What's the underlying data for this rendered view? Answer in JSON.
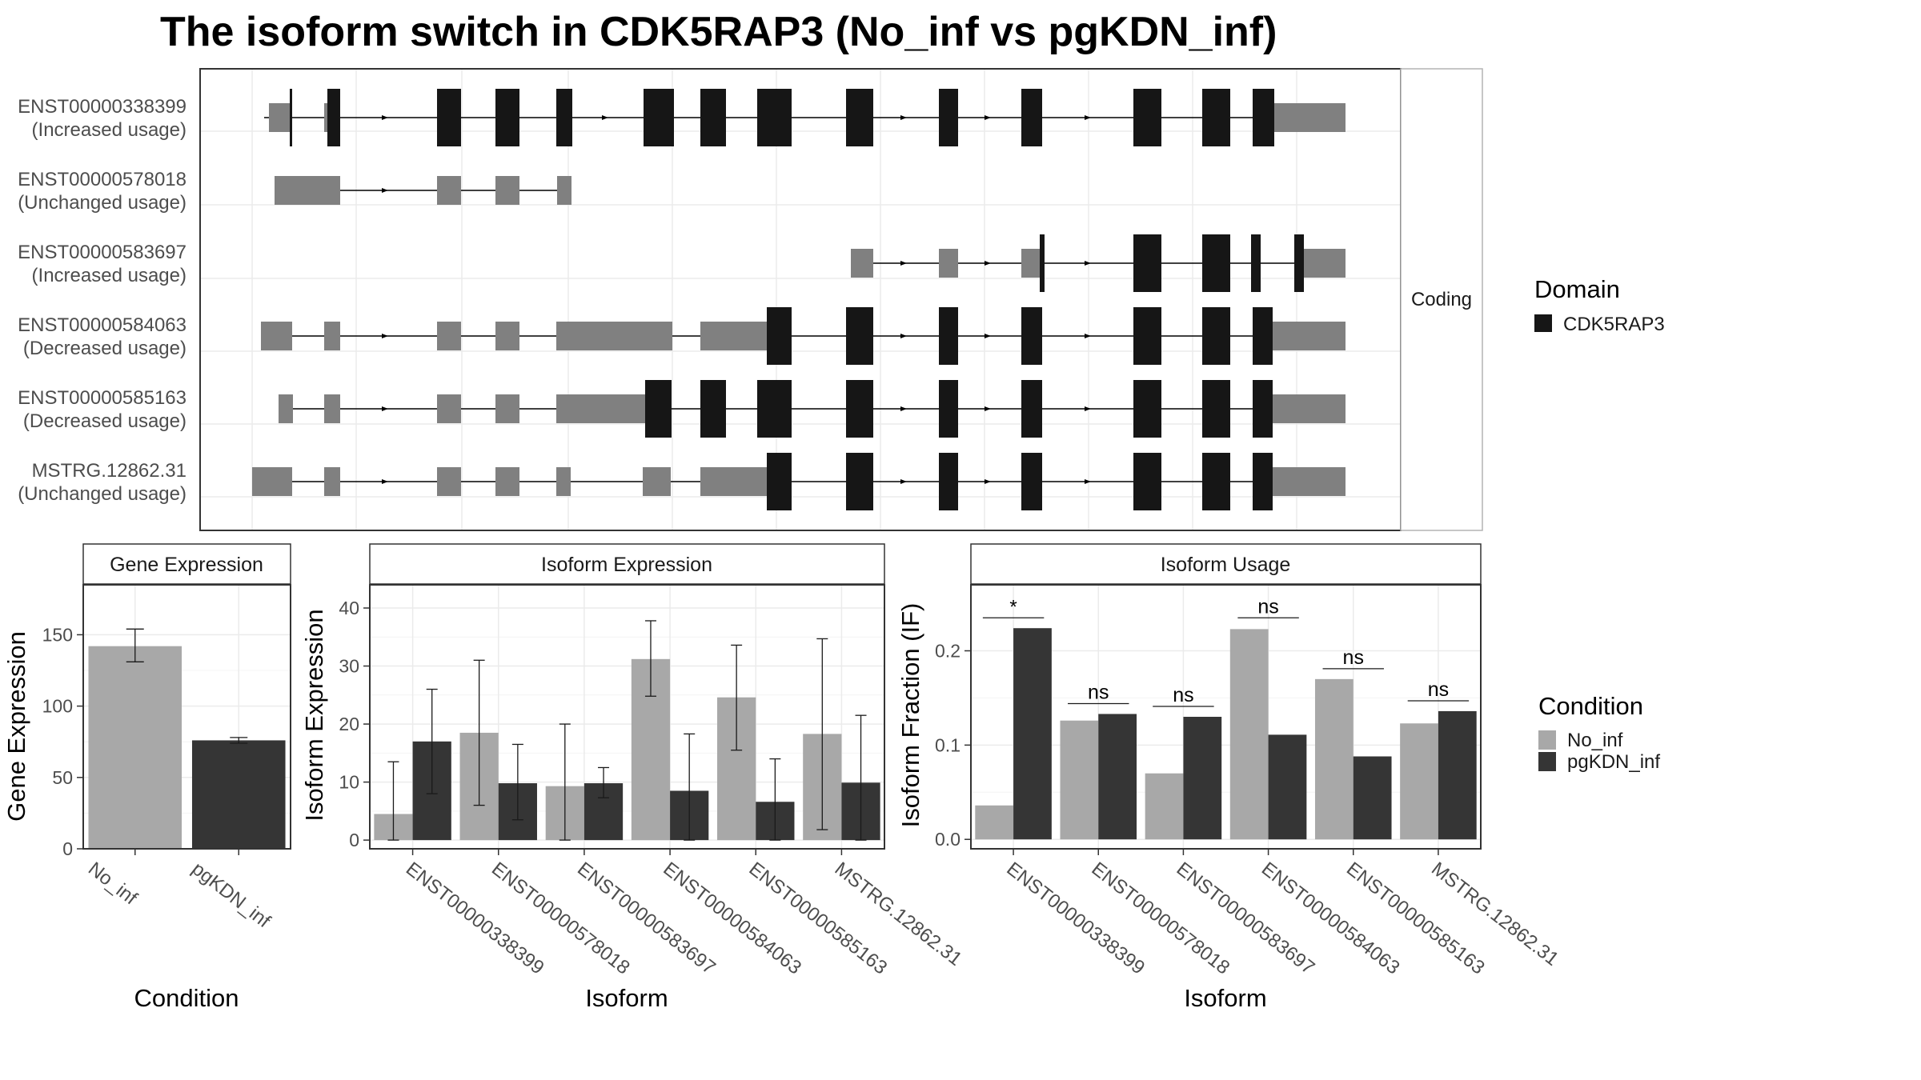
{
  "title": "The isoform switch in CDK5RAP3 (No_inf vs pgKDN_inf)",
  "colors": {
    "no_inf": "#a8a8a8",
    "pgkdn_inf": "#353535",
    "utr": "#808080",
    "cds": "#161616",
    "grid": "#ebebeb",
    "frame": "#333333"
  },
  "chart_data": [
    {
      "type": "gene-structure",
      "strip": "Coding",
      "legend_title": "Domain",
      "legend_entries": [
        "CDK5RAP3"
      ],
      "transcripts": [
        {
          "id": "ENST00000338399",
          "usage": "(Increased usage)"
        },
        {
          "id": "ENST00000578018",
          "usage": "(Unchanged usage)"
        },
        {
          "id": "ENST00000583697",
          "usage": "(Increased usage)"
        },
        {
          "id": "ENST00000584063",
          "usage": "(Decreased usage)"
        },
        {
          "id": "ENST00000585163",
          "usage": "(Decreased usage)"
        },
        {
          "id": "MSTRG.12862.31",
          "usage": "(Unchanged usage)"
        }
      ]
    },
    {
      "type": "bar",
      "strip": "Gene Expression",
      "xlabel": "Condition",
      "ylabel": "Gene Expression",
      "categories": [
        "No_inf",
        "pgKDN_inf"
      ],
      "values": [
        142,
        76
      ],
      "error_low": [
        131,
        74
      ],
      "error_high": [
        154,
        78
      ],
      "ylim": [
        0,
        185
      ],
      "yticks": [
        "0",
        "50",
        "100",
        "150"
      ]
    },
    {
      "type": "bar",
      "strip": "Isoform Expression",
      "xlabel": "Isoform",
      "ylabel": "Isoform Expression",
      "categories": [
        "ENST00000338399",
        "ENST00000578018",
        "ENST00000583697",
        "ENST00000584063",
        "ENST00000585163",
        "MSTRG.12862.31"
      ],
      "series": [
        {
          "values": [
            4.5,
            18.5,
            9.3,
            31.2,
            24.6,
            18.3
          ],
          "error_low": [
            0,
            6,
            0,
            24.8,
            15.5,
            1.8
          ],
          "error_high": [
            13.5,
            31,
            20,
            37.8,
            33.6,
            34.7
          ]
        },
        {
          "values": [
            17,
            9.8,
            9.8,
            8.5,
            6.6,
            9.9
          ],
          "error_low": [
            8,
            3.5,
            7.3,
            0,
            0,
            0
          ],
          "error_high": [
            26,
            16.5,
            12.5,
            18.3,
            14,
            21.5
          ]
        }
      ],
      "ylim": [
        -1.5,
        44
      ],
      "yticks": [
        "0",
        "10",
        "20",
        "30",
        "40"
      ]
    },
    {
      "type": "bar",
      "strip": "Isoform Usage",
      "xlabel": "Isoform",
      "ylabel": "Isoform Fraction (IF)",
      "categories": [
        "ENST00000338399",
        "ENST00000578018",
        "ENST00000583697",
        "ENST00000584063",
        "ENST00000585163",
        "MSTRG.12862.31"
      ],
      "series": [
        {
          "values": [
            0.036,
            0.126,
            0.07,
            0.223,
            0.17,
            0.123
          ]
        },
        {
          "values": [
            0.224,
            0.133,
            0.13,
            0.111,
            0.088,
            0.136
          ]
        }
      ],
      "significance": [
        "*",
        "ns",
        "ns",
        "ns",
        "ns",
        "ns"
      ],
      "sig_y": [
        0.235,
        0.144,
        0.141,
        0.235,
        0.181,
        0.147
      ],
      "ylim": [
        -0.01,
        0.27
      ],
      "yticks": [
        "0.0",
        "0.1",
        "0.2"
      ],
      "legend_title": "Condition",
      "legend_entries": [
        "No_inf",
        "pgKDN_inf"
      ]
    }
  ]
}
